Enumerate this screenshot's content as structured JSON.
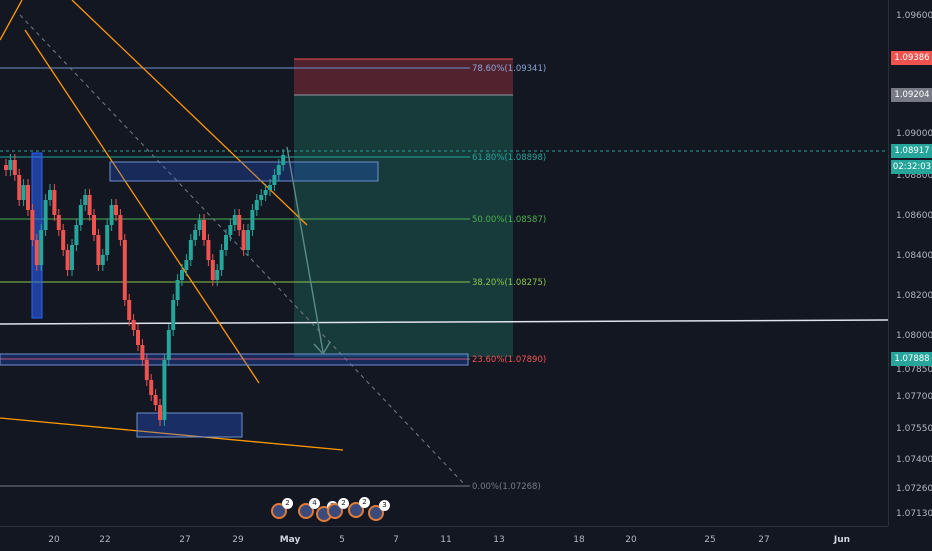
{
  "y_axis": {
    "ticks": [
      "1.09600",
      "1.09000",
      "1.08800",
      "1.08600",
      "1.08400",
      "1.08200",
      "1.08000",
      "1.07850",
      "1.07700",
      "1.07550",
      "1.07400",
      "1.07260",
      "1.07130"
    ]
  },
  "x_axis": {
    "ticks": [
      {
        "label": "20",
        "bold": false
      },
      {
        "label": "22",
        "bold": false
      },
      {
        "label": "27",
        "bold": false
      },
      {
        "label": "29",
        "bold": false
      },
      {
        "label": "May",
        "bold": true
      },
      {
        "label": "5",
        "bold": false
      },
      {
        "label": "7",
        "bold": false
      },
      {
        "label": "11",
        "bold": false
      },
      {
        "label": "13",
        "bold": false
      },
      {
        "label": "18",
        "bold": false
      },
      {
        "label": "20",
        "bold": false
      },
      {
        "label": "25",
        "bold": false
      },
      {
        "label": "27",
        "bold": false
      },
      {
        "label": "Jun",
        "bold": true
      }
    ]
  },
  "price_badges": {
    "stop_level": {
      "text": "1.09386",
      "color": "#ef5350"
    },
    "entry_level": {
      "text": "1.09204",
      "color": "#787b86"
    },
    "current_price": {
      "text": "1.08917",
      "color": "#26a69a"
    },
    "countdown": {
      "text": "02:32:03",
      "color": "#26a69a"
    },
    "target_level": {
      "text": "1.07888",
      "color": "#26a69a"
    }
  },
  "fib_levels": [
    {
      "label": "78.60%(1.09341)",
      "color": "#8aa4d6"
    },
    {
      "label": "61.80%(1.08898)",
      "color": "#26a69a"
    },
    {
      "label": "50.00%(1.08587)",
      "color": "#4caf50"
    },
    {
      "label": "38.20%(1.08275)",
      "color": "#8bc34a"
    },
    {
      "label": "23.60%(1.07890)",
      "color": "#ef5350"
    },
    {
      "label": "0.00%(1.07268)",
      "color": "#787b86"
    }
  ],
  "event_icons": [
    {
      "count": "2",
      "name": "event-flag-icon"
    },
    {
      "count": "4",
      "name": "event-flag-icon"
    },
    {
      "count": "2",
      "name": "event-flag-icon"
    },
    {
      "count": "2",
      "name": "event-flag-icon"
    },
    {
      "count": "2",
      "name": "event-flag-icon"
    },
    {
      "count": "3",
      "name": "event-flag-icon"
    }
  ],
  "colors": {
    "background": "#131722",
    "bull": "#26a69a",
    "bear": "#ef5350",
    "trendline": "#ff9800",
    "zone": "#2962ff"
  }
}
